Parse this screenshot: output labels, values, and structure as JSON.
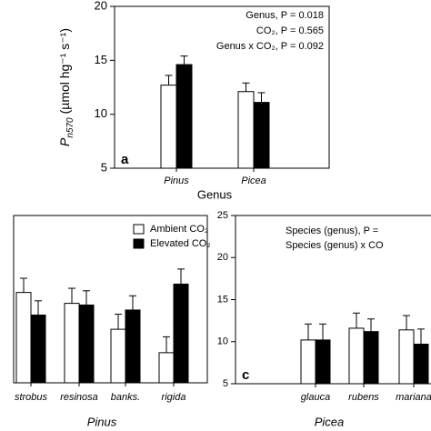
{
  "chart_data": [
    {
      "type": "bar",
      "panel_label": "a",
      "x_label": "Genus",
      "y_label": "P",
      "y_label_sub": "n570",
      "y_label_unit": "(µmol hg⁻¹ s⁻¹)",
      "categories": [
        "Pinus",
        "Picea"
      ],
      "series": [
        {
          "color": "#ffffff",
          "values": [
            12.7,
            12.1
          ],
          "errors": [
            0.9,
            0.8
          ]
        },
        {
          "color": "#000000",
          "values": [
            14.6,
            11.1
          ],
          "errors": [
            0.8,
            0.9
          ]
        }
      ],
      "ylim": [
        5,
        20
      ],
      "yticks": [
        5,
        10,
        15,
        20
      ],
      "annotations": [
        "Genus, P = 0.018",
        "CO₂, P = 0.565",
        "Genus x CO₂, P = 0.092"
      ]
    },
    {
      "type": "bar",
      "x_label": "Pinus",
      "categories": [
        "strobus",
        "resinosa",
        "banks.",
        "rigida"
      ],
      "series": [
        {
          "name": "Ambient CO₂",
          "color": "#ffffff",
          "values": [
            15.8,
            14.5,
            11.4,
            8.6
          ],
          "errors": [
            1.7,
            1.8,
            1.8,
            1.9
          ]
        },
        {
          "name": "Elevated CO₂",
          "color": "#000000",
          "values": [
            13.1,
            14.3,
            13.7,
            16.8
          ],
          "errors": [
            1.7,
            1.7,
            1.7,
            1.8
          ]
        }
      ],
      "ylim": [
        5,
        25
      ],
      "legend": "upper right"
    },
    {
      "type": "bar",
      "panel_label": "c",
      "x_label": "Picea",
      "categories": [
        "glauca",
        "rubens",
        "mariana"
      ],
      "series": [
        {
          "color": "#ffffff",
          "values": [
            10.2,
            11.6,
            11.4
          ],
          "errors": [
            1.9,
            1.8,
            1.7
          ]
        },
        {
          "color": "#000000",
          "values": [
            10.2,
            11.2,
            9.7
          ],
          "errors": [
            1.9,
            1.5,
            1.8
          ]
        }
      ],
      "ylim": [
        5,
        25
      ],
      "yticks": [
        5,
        10,
        15,
        20,
        25
      ],
      "annotations": [
        "Species (genus), P =",
        "Species (genus) x CO"
      ]
    }
  ]
}
